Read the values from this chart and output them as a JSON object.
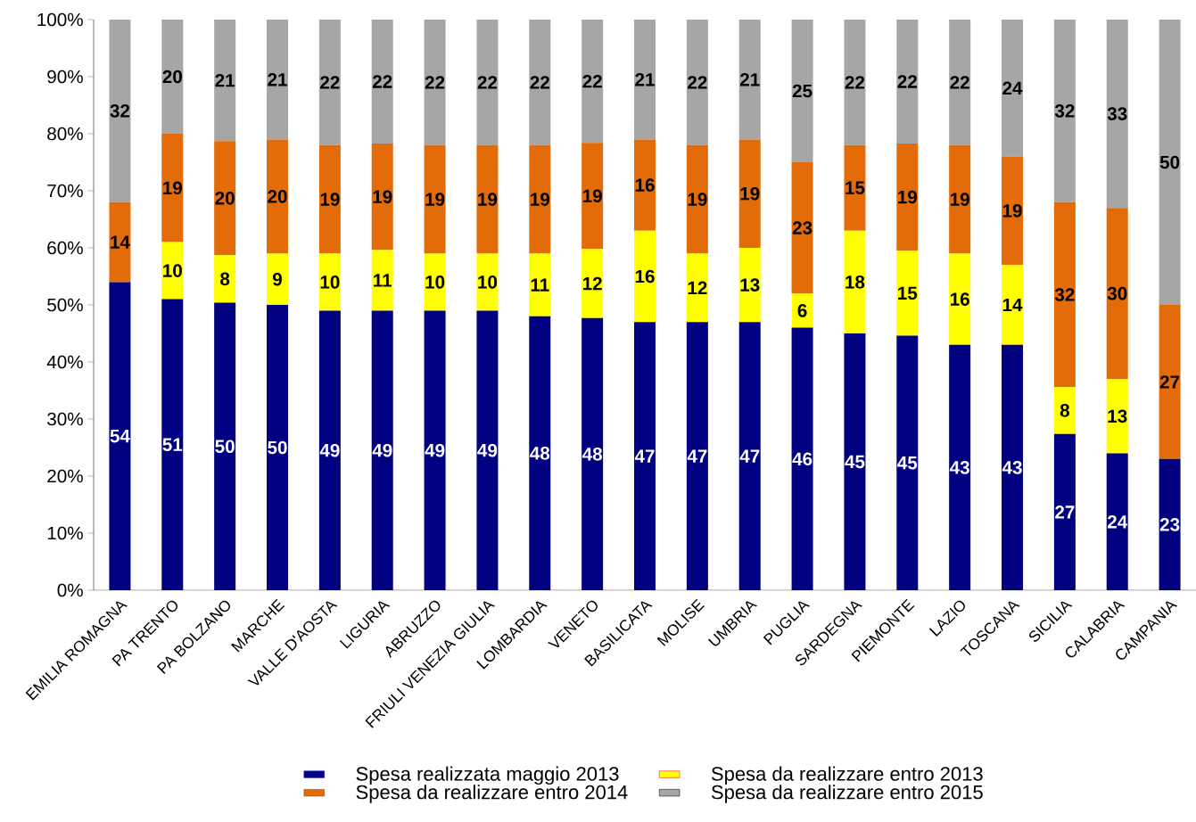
{
  "chart_data": {
    "type": "bar",
    "stacked": true,
    "categories": [
      "EMILIA ROMAGNA",
      "PA TRENTO",
      "PA BOLZANO",
      "MARCHE",
      "VALLE D'AOSTA",
      "LIGURIA",
      "ABRUZZO",
      "FRIULI VENEZIA GIULIA",
      "LOMBARDIA",
      "VENETO",
      "BASILICATA",
      "MOLISE",
      "UMBRIA",
      "PUGLIA",
      "SARDEGNA",
      "PIEMONTE",
      "LAZIO",
      "TOSCANA",
      "SICILIA",
      "CALABRIA",
      "CAMPANIA"
    ],
    "series": [
      {
        "name": "Spesa realizzata maggio 2013",
        "color": "#000080",
        "values": [
          54,
          51,
          50.4,
          50,
          49,
          49,
          49,
          49,
          48,
          47.7,
          47,
          47,
          47,
          46,
          45,
          44.6,
          43,
          43,
          27.4,
          24,
          23
        ],
        "value_labels": [
          "54",
          "51",
          "50",
          "50",
          "49",
          "49",
          "49",
          "49",
          "48",
          "48",
          "47",
          "47",
          "47",
          "46",
          "45",
          "45",
          "43",
          "43",
          "27",
          "24",
          "23"
        ]
      },
      {
        "name": "Spesa da realizzare entro 2013",
        "color": "#ffff00",
        "values": [
          0,
          10,
          8.3,
          9,
          10,
          10.6,
          10,
          10,
          11,
          12.1,
          16,
          12,
          13,
          6,
          18,
          14.9,
          16,
          14,
          8.2,
          13,
          0
        ],
        "value_labels": [
          null,
          "10",
          "8",
          "9",
          "10",
          "11",
          "10",
          "10",
          "11",
          "12",
          "16",
          "12",
          "13",
          "6",
          "18",
          "15",
          "16",
          "14",
          "8",
          "13",
          null
        ]
      },
      {
        "name": "Spesa da realizzare entro 2014",
        "color": "#e36c09",
        "values": [
          14,
          19,
          20,
          20,
          19,
          18.7,
          19,
          19,
          19,
          18.6,
          16,
          19,
          19,
          23,
          15,
          18.8,
          19,
          19,
          32.4,
          30,
          27
        ],
        "value_labels": [
          "14",
          "19",
          "20",
          "20",
          "19",
          "19",
          "19",
          "19",
          "19",
          "19",
          "16",
          "19",
          "19",
          "23",
          "15",
          "19",
          "19",
          "19",
          "32",
          "30",
          "27"
        ]
      },
      {
        "name": "Spesa da realizzare entro 2015",
        "color": "#a6a6a6",
        "values": [
          32,
          20,
          21.3,
          21,
          22,
          21.7,
          22,
          22,
          22,
          21.6,
          21,
          22,
          21,
          25,
          22,
          21.7,
          22,
          24,
          32,
          33,
          50
        ],
        "value_labels": [
          "32",
          "20",
          "21",
          "21",
          "22",
          "22",
          "22",
          "22",
          "22",
          "22",
          "21",
          "22",
          "21",
          "25",
          "22",
          "22",
          "22",
          "24",
          "32",
          "33",
          "50"
        ]
      }
    ],
    "ylim": [
      0,
      100
    ],
    "yticks": [
      {
        "value": 0,
        "label": "0%"
      },
      {
        "value": 10,
        "label": "10%"
      },
      {
        "value": 20,
        "label": "20%"
      },
      {
        "value": 30,
        "label": "30%"
      },
      {
        "value": 40,
        "label": "40%"
      },
      {
        "value": 50,
        "label": "50%"
      },
      {
        "value": 60,
        "label": "60%"
      },
      {
        "value": 70,
        "label": "70%"
      },
      {
        "value": 80,
        "label": "80%"
      },
      {
        "value": 90,
        "label": "90%"
      },
      {
        "value": 100,
        "label": "100%"
      }
    ],
    "grid": false,
    "legend": "bottom"
  }
}
